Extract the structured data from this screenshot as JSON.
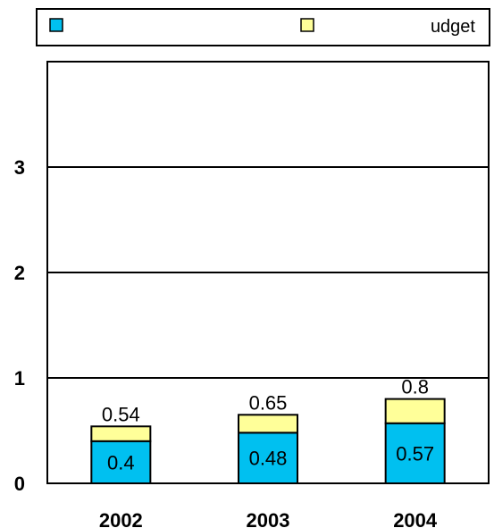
{
  "chart_data": {
    "type": "bar",
    "stacked": true,
    "categories": [
      "2002",
      "2003",
      "2004"
    ],
    "series": [
      {
        "name": "",
        "color": "#00c0f0",
        "values": [
          0.4,
          0.48,
          0.57
        ],
        "labels": [
          "0.4",
          "0.48",
          "0.57"
        ]
      },
      {
        "name": "udget",
        "color": "#ffff99",
        "values": [
          0.14,
          0.17,
          0.23
        ],
        "labels": [
          "",
          "",
          ""
        ]
      }
    ],
    "totals": [
      0.54,
      0.65,
      0.8
    ],
    "total_labels": [
      "0.54",
      "0.65",
      "0.8"
    ],
    "yticks": [
      "0",
      "1",
      "2",
      "3"
    ],
    "ylim": [
      0,
      4
    ],
    "title": "",
    "xlabel": "",
    "ylabel": "",
    "grid": true,
    "legend_position": "top"
  }
}
